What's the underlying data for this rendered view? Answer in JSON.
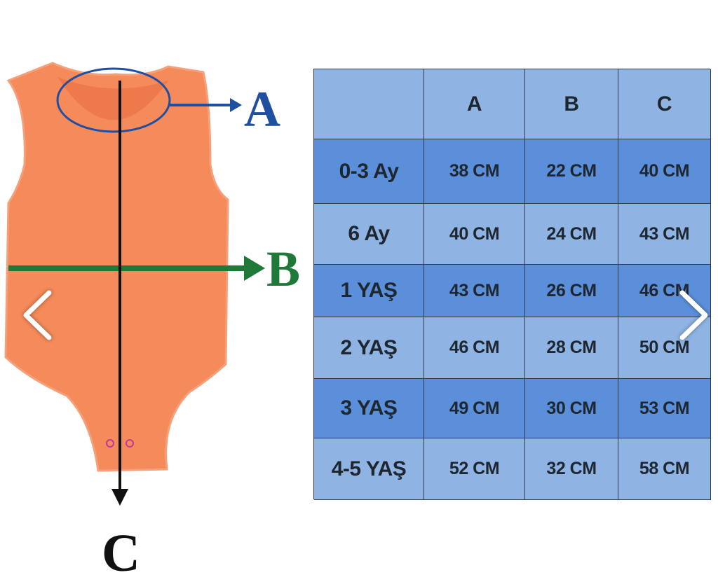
{
  "diagram": {
    "labels": [
      "A",
      "B",
      "C"
    ]
  },
  "table": {
    "header": [
      "A",
      "B",
      "C"
    ],
    "rows": [
      [
        "0-3 Ay",
        "38 CM",
        "22 CM",
        "40 CM"
      ],
      [
        "6 Ay",
        "40 CM",
        "24 CM",
        "43 CM"
      ],
      [
        "1 YAŞ",
        "43 CM",
        "26 CM",
        "46 CM"
      ],
      [
        "2 YAŞ",
        "46 CM",
        "28 CM",
        "50 CM"
      ],
      [
        "3 YAŞ",
        "49 CM",
        "30 CM",
        "53 CM"
      ],
      [
        "4-5 YAŞ",
        "52 CM",
        "32 CM",
        "58 CM"
      ]
    ]
  }
}
